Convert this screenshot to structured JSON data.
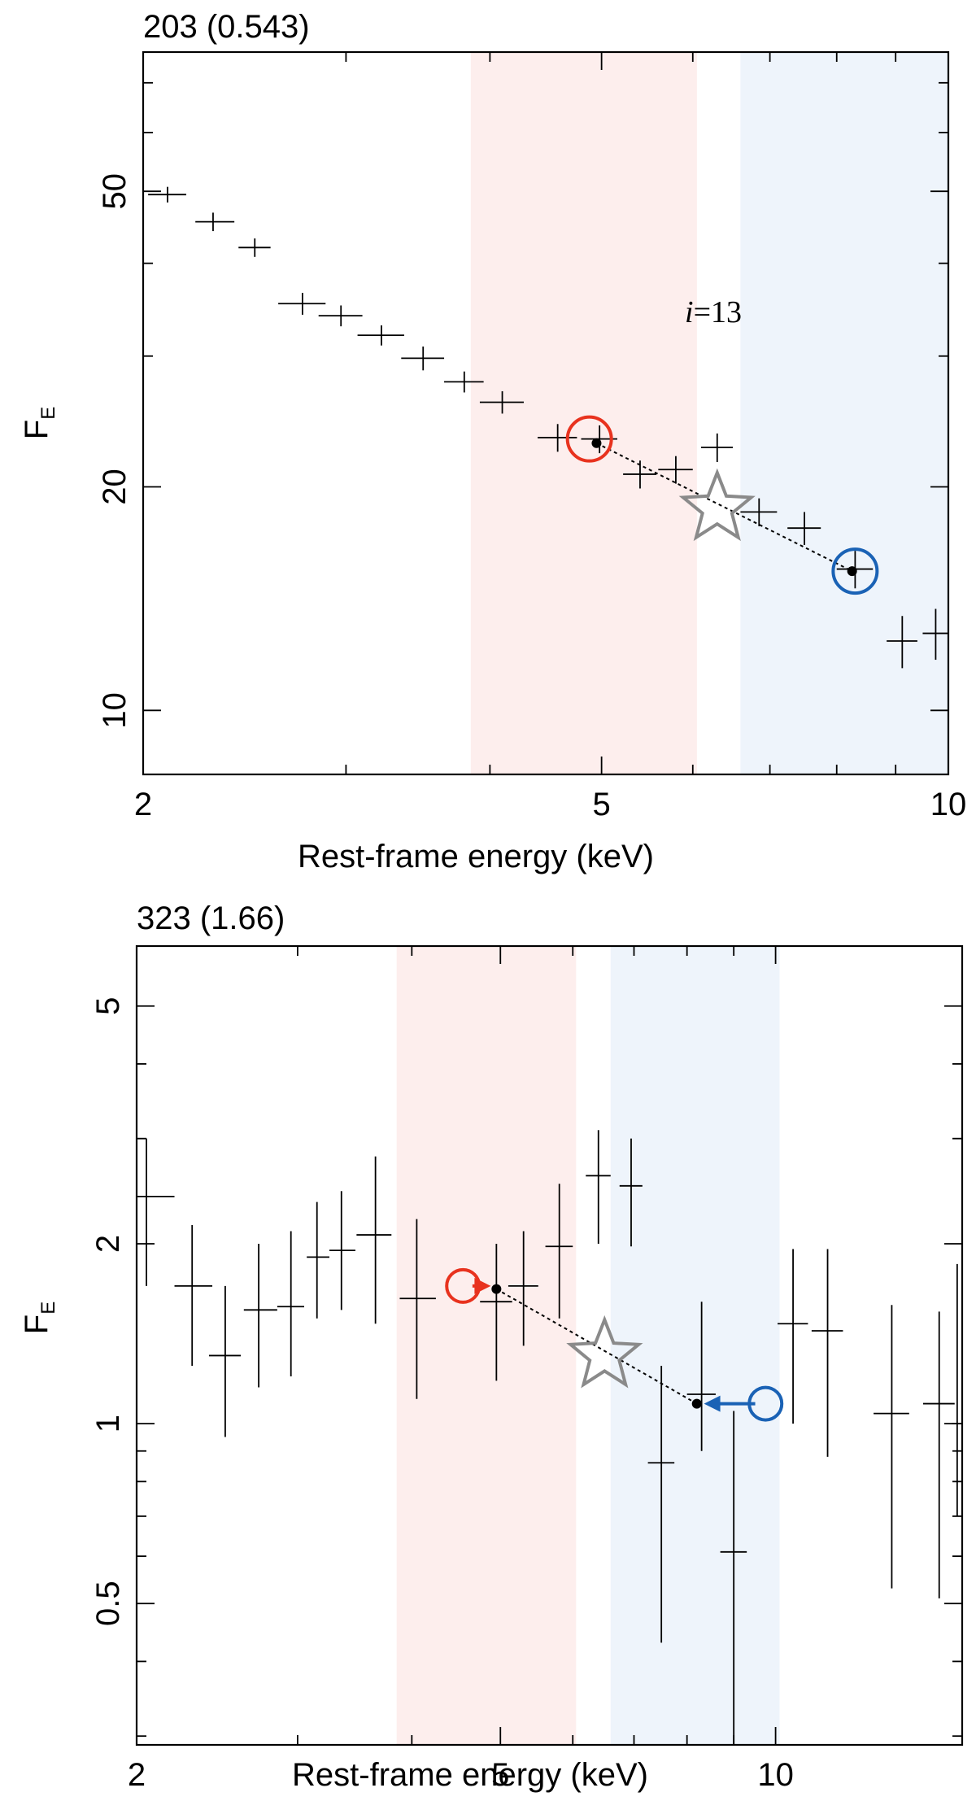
{
  "chart_data": [
    {
      "type": "scatter",
      "title": "203 (0.543)",
      "xlabel": "Rest-frame energy (keV)",
      "ylabel": "F",
      "ylabel_sub": "E",
      "xscale": "log",
      "yscale": "log",
      "xlim": [
        2,
        10
      ],
      "ylim": [
        8.2,
        77
      ],
      "xticks_labeled": [
        {
          "v": 2,
          "label": "2"
        },
        {
          "v": 5,
          "label": "5"
        },
        {
          "v": 10,
          "label": "10"
        }
      ],
      "xticks_minor": [
        3,
        4,
        6,
        7,
        8,
        9
      ],
      "yticks_labeled": [
        {
          "v": 10,
          "label": "10"
        },
        {
          "v": 20,
          "label": "20"
        },
        {
          "v": 50,
          "label": "50"
        }
      ],
      "yticks_minor": [
        30,
        40,
        60,
        70
      ],
      "bands": [
        {
          "name": "soft",
          "x0": 3.85,
          "x1": 6.05,
          "color": "#fdeeed"
        },
        {
          "name": "hard",
          "x0": 6.6,
          "x1": 10,
          "color": "#eef4fb"
        }
      ],
      "points": [
        {
          "x": 2.1,
          "xlo": 2.02,
          "xhi": 2.18,
          "y": 49.5,
          "ylo": 48.3,
          "yhi": 50.7
        },
        {
          "x": 2.3,
          "xlo": 2.22,
          "xhi": 2.4,
          "y": 45.5,
          "ylo": 44.2,
          "yhi": 46.8
        },
        {
          "x": 2.5,
          "xlo": 2.42,
          "xhi": 2.58,
          "y": 42.0,
          "ylo": 40.8,
          "yhi": 43.2
        },
        {
          "x": 2.75,
          "xlo": 2.62,
          "xhi": 2.88,
          "y": 35.3,
          "ylo": 34.1,
          "yhi": 36.5
        },
        {
          "x": 2.97,
          "xlo": 2.84,
          "xhi": 3.1,
          "y": 34.0,
          "ylo": 32.9,
          "yhi": 35.1
        },
        {
          "x": 3.22,
          "xlo": 3.07,
          "xhi": 3.37,
          "y": 32.0,
          "ylo": 31.0,
          "yhi": 33.0
        },
        {
          "x": 3.5,
          "xlo": 3.35,
          "xhi": 3.65,
          "y": 29.8,
          "ylo": 28.7,
          "yhi": 30.9
        },
        {
          "x": 3.8,
          "xlo": 3.65,
          "xhi": 3.95,
          "y": 27.7,
          "ylo": 26.8,
          "yhi": 28.6
        },
        {
          "x": 4.1,
          "xlo": 3.92,
          "xhi": 4.28,
          "y": 26.0,
          "ylo": 25.1,
          "yhi": 26.9
        },
        {
          "x": 4.58,
          "xlo": 4.4,
          "xhi": 4.76,
          "y": 23.3,
          "ylo": 22.3,
          "yhi": 24.3
        },
        {
          "x": 4.98,
          "xlo": 4.8,
          "xhi": 5.16,
          "y": 23.2,
          "ylo": 22.2,
          "yhi": 24.2
        },
        {
          "x": 5.4,
          "xlo": 5.22,
          "xhi": 5.58,
          "y": 20.8,
          "ylo": 19.9,
          "yhi": 21.7
        },
        {
          "x": 5.8,
          "xlo": 5.6,
          "xhi": 6.0,
          "y": 21.1,
          "ylo": 20.2,
          "yhi": 22.0
        },
        {
          "x": 6.3,
          "xlo": 6.1,
          "xhi": 6.5,
          "y": 22.6,
          "ylo": 21.6,
          "yhi": 23.6
        },
        {
          "x": 6.85,
          "xlo": 6.6,
          "xhi": 7.1,
          "y": 18.5,
          "ylo": 17.7,
          "yhi": 19.3
        },
        {
          "x": 7.5,
          "xlo": 7.25,
          "xhi": 7.75,
          "y": 17.6,
          "ylo": 16.7,
          "yhi": 18.5
        },
        {
          "x": 8.3,
          "xlo": 8.0,
          "xhi": 8.6,
          "y": 15.5,
          "ylo": 14.6,
          "yhi": 16.4
        },
        {
          "x": 9.12,
          "xlo": 8.84,
          "xhi": 9.4,
          "y": 12.4,
          "ylo": 11.4,
          "yhi": 13.4
        },
        {
          "x": 9.75,
          "xlo": 9.5,
          "xhi": 10.0,
          "y": 12.7,
          "ylo": 11.7,
          "yhi": 13.7
        }
      ],
      "dashed_line": [
        {
          "x": 4.95,
          "y": 22.9
        },
        {
          "x": 8.25,
          "y": 15.4
        }
      ],
      "red_circle": {
        "x": 4.88,
        "y": 23.2
      },
      "blue_circle": {
        "x": 8.3,
        "y": 15.4
      },
      "star": {
        "x": 6.3,
        "y": 18.7
      },
      "annotation": {
        "x": 6.0,
        "y": 32.5,
        "italic": "i",
        "text": "=13"
      }
    },
    {
      "type": "scatter",
      "title": "323 (1.66)",
      "xlabel": "Rest-frame energy (keV)",
      "ylabel": "F",
      "ylabel_sub": "E",
      "xscale": "log",
      "yscale": "log",
      "xlim": [
        2,
        16
      ],
      "ylim": [
        0.29,
        6.3
      ],
      "xticks_labeled": [
        {
          "v": 2,
          "label": "2"
        },
        {
          "v": 5,
          "label": "5"
        },
        {
          "v": 10,
          "label": "10"
        }
      ],
      "xticks_minor": [
        3,
        4,
        6,
        7,
        8,
        9
      ],
      "yticks_labeled": [
        {
          "v": 0.5,
          "label": "0.5"
        },
        {
          "v": 1,
          "label": "1"
        },
        {
          "v": 2,
          "label": "2"
        },
        {
          "v": 5,
          "label": "5"
        }
      ],
      "yticks_minor": [
        0.3,
        0.4,
        0.6,
        0.7,
        0.8,
        0.9,
        3,
        4
      ],
      "bands": [
        {
          "name": "soft",
          "x0": 3.85,
          "x1": 6.05,
          "color": "#fdeeed"
        },
        {
          "name": "hard",
          "x0": 6.6,
          "x1": 10.1,
          "color": "#eef4fb"
        }
      ],
      "points": [
        {
          "x": 2.05,
          "xlo": 2.0,
          "xhi": 2.2,
          "y": 2.4,
          "ylo": 1.7,
          "yhi": 3.0
        },
        {
          "x": 2.3,
          "xlo": 2.2,
          "xhi": 2.42,
          "y": 1.7,
          "ylo": 1.25,
          "yhi": 2.15
        },
        {
          "x": 2.5,
          "xlo": 2.4,
          "xhi": 2.6,
          "y": 1.3,
          "ylo": 0.95,
          "yhi": 1.7
        },
        {
          "x": 2.72,
          "xlo": 2.62,
          "xhi": 2.85,
          "y": 1.55,
          "ylo": 1.15,
          "yhi": 2.0
        },
        {
          "x": 2.95,
          "xlo": 2.85,
          "xhi": 3.05,
          "y": 1.57,
          "ylo": 1.2,
          "yhi": 2.1
        },
        {
          "x": 3.15,
          "xlo": 3.07,
          "xhi": 3.25,
          "y": 1.9,
          "ylo": 1.5,
          "yhi": 2.35
        },
        {
          "x": 3.35,
          "xlo": 3.25,
          "xhi": 3.47,
          "y": 1.95,
          "ylo": 1.55,
          "yhi": 2.45
        },
        {
          "x": 3.65,
          "xlo": 3.48,
          "xhi": 3.8,
          "y": 2.07,
          "ylo": 1.47,
          "yhi": 2.8
        },
        {
          "x": 4.05,
          "xlo": 3.88,
          "xhi": 4.25,
          "y": 1.62,
          "ylo": 1.1,
          "yhi": 2.2
        },
        {
          "x": 4.95,
          "xlo": 4.75,
          "xhi": 5.15,
          "y": 1.6,
          "ylo": 1.18,
          "yhi": 2.0
        },
        {
          "x": 5.3,
          "xlo": 5.1,
          "xhi": 5.5,
          "y": 1.7,
          "ylo": 1.35,
          "yhi": 2.1
        },
        {
          "x": 5.8,
          "xlo": 5.6,
          "xhi": 6.0,
          "y": 1.98,
          "ylo": 1.5,
          "yhi": 2.52
        },
        {
          "x": 6.4,
          "xlo": 6.2,
          "xhi": 6.6,
          "y": 2.6,
          "ylo": 2.0,
          "yhi": 3.1
        },
        {
          "x": 6.95,
          "xlo": 6.75,
          "xhi": 7.15,
          "y": 2.5,
          "ylo": 1.98,
          "yhi": 3.0
        },
        {
          "x": 7.5,
          "xlo": 7.25,
          "xhi": 7.75,
          "y": 0.86,
          "ylo": 0.43,
          "yhi": 1.25
        },
        {
          "x": 8.3,
          "xlo": 8.0,
          "xhi": 8.6,
          "y": 1.12,
          "ylo": 0.9,
          "yhi": 1.6
        },
        {
          "x": 9.0,
          "xlo": 8.7,
          "xhi": 9.3,
          "y": 0.61,
          "ylo": 0.29,
          "yhi": 1.05
        },
        {
          "x": 10.45,
          "xlo": 10.05,
          "xhi": 10.85,
          "y": 1.47,
          "ylo": 1.0,
          "yhi": 1.96
        },
        {
          "x": 11.4,
          "xlo": 10.95,
          "xhi": 11.85,
          "y": 1.43,
          "ylo": 0.88,
          "yhi": 1.96
        },
        {
          "x": 13.4,
          "xlo": 12.8,
          "xhi": 14.0,
          "y": 1.04,
          "ylo": 0.53,
          "yhi": 1.58
        },
        {
          "x": 15.1,
          "xlo": 14.5,
          "xhi": 15.7,
          "y": 1.08,
          "ylo": 0.51,
          "yhi": 1.54
        },
        {
          "x": 15.8,
          "xlo": 15.6,
          "xhi": 16.0,
          "y": 1.0,
          "ylo": 0.7,
          "yhi": 1.85
        }
      ],
      "dashed_line": [
        {
          "x": 4.95,
          "y": 1.68
        },
        {
          "x": 8.2,
          "y": 1.08
        }
      ],
      "red_circle": {
        "x": 4.55,
        "y": 1.7
      },
      "blue_circle": {
        "x": 9.75,
        "y": 1.08
      },
      "red_arrow": {
        "x0": 4.66,
        "x1": 4.88,
        "y": 1.7
      },
      "blue_arrow": {
        "x0": 9.5,
        "x1": 8.35,
        "y": 1.08
      },
      "star": {
        "x": 6.5,
        "y": 1.3
      }
    }
  ]
}
